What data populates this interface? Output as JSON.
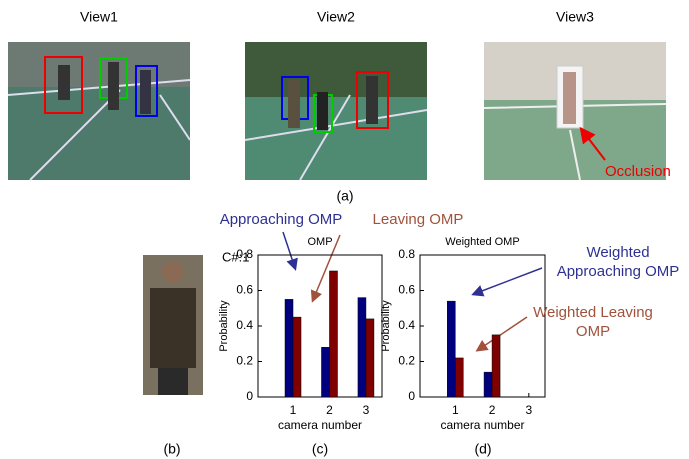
{
  "figure": {
    "views": [
      "View1",
      "View2",
      "View3"
    ],
    "occlusion": "Occlusion",
    "panel_a": "(a)",
    "panel_b": "(b)",
    "panel_c": "(c)",
    "panel_d": "(d)",
    "camera_tag": "C#:1"
  },
  "chart_data": [
    {
      "type": "bar",
      "title": "OMP",
      "y_label": "Probability",
      "x_label": "camera number",
      "categories": [
        "1",
        "2",
        "3"
      ],
      "ylim": [
        0,
        0.8
      ],
      "yticks": [
        0,
        0.2,
        0.4,
        0.6,
        0.8
      ],
      "series": [
        {
          "name": "Approaching OMP",
          "color": "#00007f",
          "label_color": "#2e3192",
          "values": [
            0.55,
            0.28,
            0.56
          ]
        },
        {
          "name": "Leaving OMP",
          "color": "#7f0000",
          "label_color": "#a0523c",
          "values": [
            0.45,
            0.71,
            0.44
          ]
        }
      ]
    },
    {
      "type": "bar",
      "title": "Weighted OMP",
      "y_label": "Probability",
      "x_label": "camera number",
      "categories": [
        "1",
        "2",
        "3"
      ],
      "ylim": [
        0,
        0.8
      ],
      "yticks": [
        0,
        0.2,
        0.4,
        0.6,
        0.8
      ],
      "series": [
        {
          "name": "Weighted Approaching OMP",
          "color": "#00007f",
          "label_color": "#2e3192",
          "values": [
            0.54,
            0.14,
            0
          ]
        },
        {
          "name": "Weighted Leaving OMP",
          "color": "#7f0000",
          "label_color": "#a0523c",
          "values": [
            0.22,
            0.35,
            0
          ]
        }
      ]
    }
  ]
}
